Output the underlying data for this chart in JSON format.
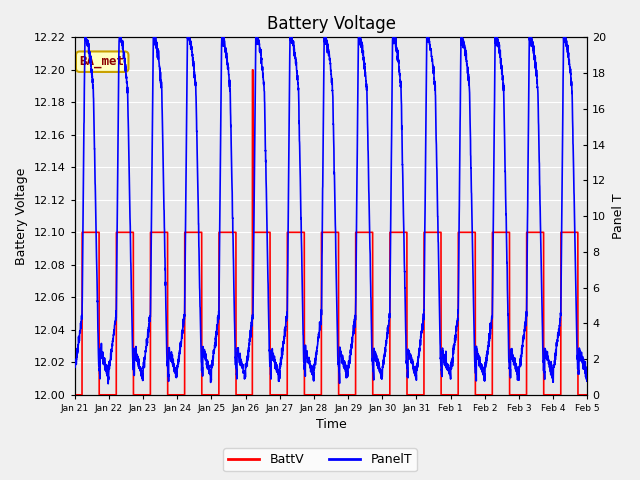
{
  "title": "Battery Voltage",
  "xlabel": "Time",
  "ylabel_left": "Battery Voltage",
  "ylabel_right": "Panel T",
  "ylim_left": [
    12.0,
    12.22
  ],
  "ylim_right": [
    0,
    20
  ],
  "yticks_left": [
    12.0,
    12.02,
    12.04,
    12.06,
    12.08,
    12.1,
    12.12,
    12.14,
    12.16,
    12.18,
    12.2,
    12.22
  ],
  "yticks_right": [
    0,
    2,
    4,
    6,
    8,
    10,
    12,
    14,
    16,
    18,
    20
  ],
  "xtick_labels": [
    "Jan 21",
    "Jan 22",
    "Jan 23",
    "Jan 24",
    "Jan 25",
    "Jan 26",
    "Jan 27",
    "Jan 28",
    "Jan 29",
    "Jan 30",
    "Jan 31",
    "Feb 1",
    "Feb 2",
    "Feb 3",
    "Feb 4",
    "Feb 5"
  ],
  "plot_bg_color": "#e8e8e8",
  "fig_bg_color": "#f0f0f0",
  "annotation_text": "BA_met",
  "annotation_color": "#8b0000",
  "annotation_bg": "#ffffc0",
  "annotation_edge": "#c8a000",
  "grid_color": "#ffffff",
  "batt_color": "red",
  "panel_color": "blue",
  "legend_batt": "BattV",
  "legend_panel": "PanelT",
  "title_fontsize": 12,
  "axis_label_fontsize": 9,
  "tick_fontsize": 8,
  "linewidth": 1.2
}
